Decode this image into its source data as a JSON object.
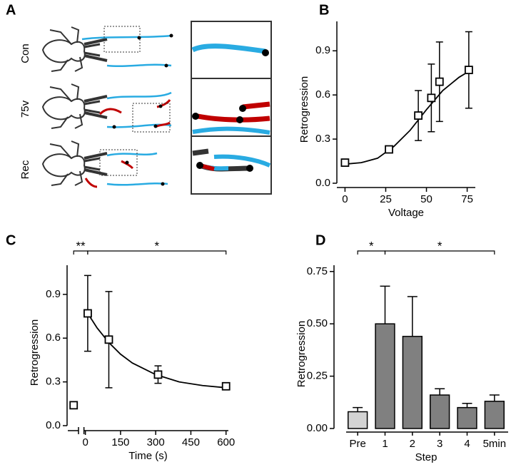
{
  "panel_a": {
    "label": "A",
    "rows": [
      "Con",
      "75v",
      "Rec"
    ]
  },
  "chart_data": [
    {
      "type": "scatter",
      "label": "B",
      "xlabel": "Voltage",
      "ylabel": "Retrogression",
      "x": [
        0,
        27,
        45,
        53,
        58,
        76
      ],
      "values": [
        0.14,
        0.23,
        0.46,
        0.58,
        0.69,
        0.77
      ],
      "errors": [
        0.02,
        0.02,
        0.17,
        0.23,
        0.27,
        0.26
      ],
      "fit": {
        "x": [
          0,
          10,
          20,
          30,
          40,
          50,
          60,
          70,
          76
        ],
        "values": [
          0.13,
          0.14,
          0.17,
          0.25,
          0.36,
          0.5,
          0.63,
          0.72,
          0.76
        ]
      },
      "color": "#000000",
      "xlim": [
        -5,
        80
      ],
      "xticks": [
        0,
        25,
        50,
        75
      ],
      "ylim": [
        0,
        1.1
      ],
      "yticks": [
        {
          "value": 0,
          "label": "0.0"
        },
        0.3,
        0.6,
        0.9
      ]
    },
    {
      "type": "scatter",
      "label": "C",
      "xlabel": "Time (s)",
      "ylabel": "Retrogression",
      "x": [
        -50,
        10,
        100,
        310,
        600
      ],
      "values": [
        0.14,
        0.77,
        0.59,
        0.35,
        0.27
      ],
      "errors": [
        0.01,
        0.26,
        0.33,
        0.06,
        0.02
      ],
      "fit": {
        "x": [
          10,
          50,
          100,
          150,
          200,
          300,
          400,
          500,
          600
        ],
        "values": [
          0.77,
          0.67,
          0.57,
          0.49,
          0.43,
          0.35,
          0.3,
          0.275,
          0.26
        ]
      },
      "color": "#000000",
      "xlim": [
        -75,
        610
      ],
      "xticks": [
        0,
        150,
        300,
        450,
        600
      ],
      "axis_break": true,
      "ylim": [
        0,
        1.1
      ],
      "yticks": [
        {
          "value": 0,
          "label": "0.0"
        },
        0.3,
        0.6,
        0.9
      ],
      "annotations": [
        {
          "text": "**",
          "from": -50,
          "to": 10
        },
        {
          "text": "*",
          "from": 10,
          "to": 600
        }
      ]
    },
    {
      "type": "bar",
      "label": "D",
      "xlabel": "Step",
      "ylabel": "Retrogression",
      "categories": [
        "Pre",
        "1",
        "2",
        "3",
        "4",
        "5min"
      ],
      "values": [
        0.08,
        0.5,
        0.44,
        0.16,
        0.1,
        0.13
      ],
      "errors": [
        0.02,
        0.18,
        0.19,
        0.03,
        0.02,
        0.03
      ],
      "colors": [
        "#d3d3d3",
        "#808080",
        "#808080",
        "#808080",
        "#808080",
        "#808080"
      ],
      "ylim": [
        0,
        0.78
      ],
      "yticks": [
        {
          "value": 0,
          "label": "0.00"
        },
        0.25,
        {
          "value": 0.5,
          "label": "0.50"
        },
        0.75
      ],
      "annotations": [
        {
          "text": "*",
          "from": 0,
          "to": 1
        },
        {
          "text": "*",
          "from": 1,
          "to": 5
        }
      ]
    }
  ]
}
